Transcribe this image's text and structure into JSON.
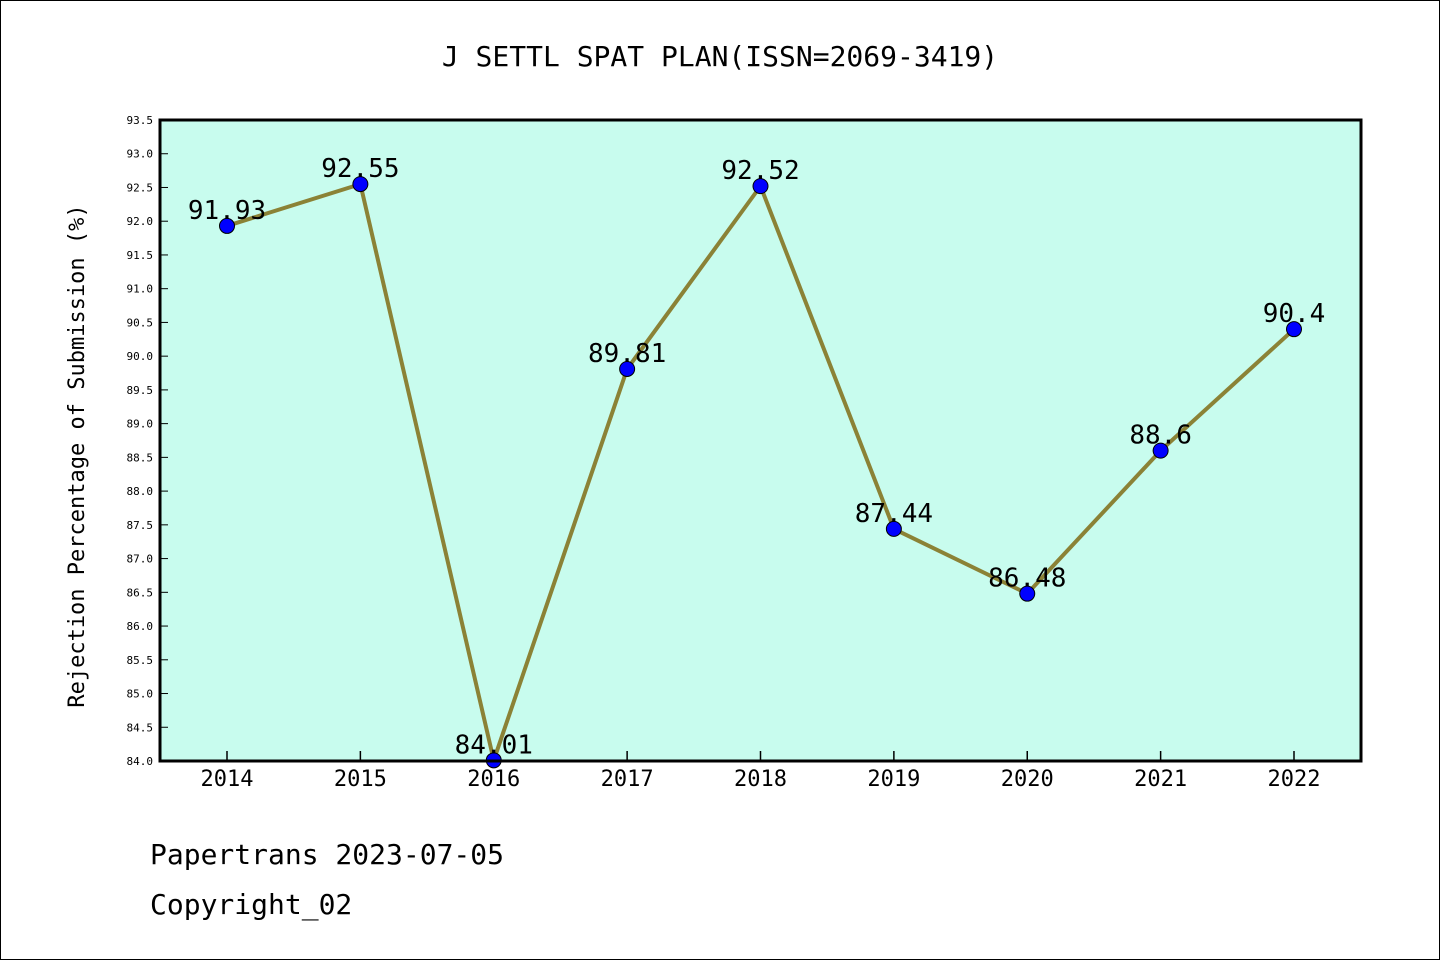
{
  "chart_data": {
    "type": "line",
    "title": "J SETTL SPAT PLAN(ISSN=2069-3419)",
    "xlabel": "",
    "ylabel": "Rejection Percentage of Submission (%)",
    "categories": [
      "2014",
      "2015",
      "2016",
      "2017",
      "2018",
      "2019",
      "2020",
      "2021",
      "2022"
    ],
    "values": [
      91.93,
      92.55,
      84.01,
      89.81,
      92.52,
      87.44,
      86.48,
      88.6,
      90.4
    ],
    "data_labels": [
      "91.93",
      "92.55",
      "84.01",
      "89.81",
      "92.52",
      "87.44",
      "86.48",
      "88.6",
      "90.4"
    ],
    "ylim": [
      84.0,
      93.5
    ],
    "yticks": [
      "84.0",
      "84.5",
      "85.0",
      "85.5",
      "86.0",
      "86.5",
      "87.0",
      "87.5",
      "88.0",
      "88.5",
      "89.0",
      "89.5",
      "90.0",
      "90.5",
      "91.0",
      "91.5",
      "92.0",
      "92.5",
      "93.0",
      "93.5"
    ],
    "grid": false,
    "legend": "none",
    "colors": {
      "plot_background": "#c8fcee",
      "line": "#8b8236",
      "marker": "#0000ff"
    }
  },
  "footer": {
    "line1": "Papertrans 2023-07-05",
    "line2": "Copyright_02"
  }
}
